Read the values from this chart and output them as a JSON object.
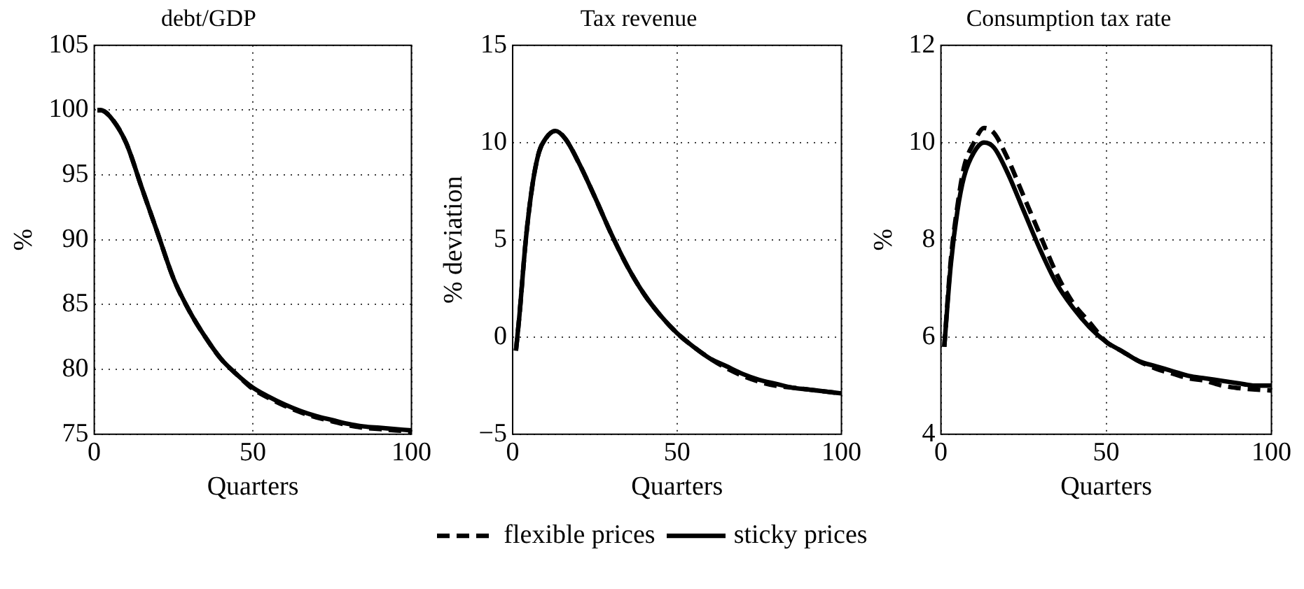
{
  "chart_data": [
    {
      "type": "line",
      "title": "debt/GDP",
      "xlabel": "Quarters",
      "ylabel": "%",
      "xlim": [
        0,
        100
      ],
      "xticks": [
        0,
        50,
        100
      ],
      "ylim": [
        75,
        105
      ],
      "yticks": [
        75,
        80,
        85,
        90,
        95,
        100,
        105
      ],
      "grid": true,
      "legend": "bottom",
      "marker": "none",
      "x": [
        1,
        2,
        5,
        10,
        15,
        20,
        25,
        30,
        35,
        40,
        45,
        50,
        55,
        60,
        65,
        70,
        75,
        80,
        85,
        90,
        95,
        100
      ],
      "series": [
        {
          "name": "flexible prices",
          "color": "#000000",
          "line_style": "dashed",
          "values": [
            100,
            100,
            99.5,
            97.5,
            94,
            90.5,
            87,
            84.5,
            82.5,
            80.8,
            79.6,
            78.5,
            77.8,
            77.2,
            76.7,
            76.3,
            76,
            75.7,
            75.5,
            75.4,
            75.3,
            75.2
          ]
        },
        {
          "name": "sticky prices",
          "color": "#000000",
          "line_style": "solid",
          "values": [
            100,
            100,
            99.5,
            97.5,
            94,
            90.5,
            87,
            84.5,
            82.5,
            80.8,
            79.6,
            78.6,
            77.9,
            77.3,
            76.8,
            76.4,
            76.1,
            75.8,
            75.6,
            75.5,
            75.4,
            75.3
          ]
        }
      ]
    },
    {
      "type": "line",
      "title": "Tax revenue",
      "xlabel": "Quarters",
      "ylabel": "% deviation",
      "xlim": [
        0,
        100
      ],
      "xticks": [
        0,
        50,
        100
      ],
      "ylim": [
        -5,
        15
      ],
      "yticks": [
        -5,
        0,
        5,
        10,
        15
      ],
      "grid": true,
      "marker": "none",
      "x": [
        1,
        2,
        4,
        6,
        8,
        10,
        13,
        16,
        20,
        25,
        30,
        35,
        40,
        45,
        50,
        55,
        60,
        65,
        70,
        75,
        80,
        85,
        90,
        95,
        100
      ],
      "series": [
        {
          "color": "#000000",
          "line_style": "dashed",
          "values": [
            -0.7,
            1,
            5,
            7.8,
            9.5,
            10.2,
            10.6,
            10.2,
            9,
            7.2,
            5.3,
            3.6,
            2.2,
            1.1,
            0.2,
            -0.5,
            -1.1,
            -1.6,
            -2,
            -2.3,
            -2.5,
            -2.6,
            -2.7,
            -2.8,
            -2.9
          ]
        },
        {
          "color": "#000000",
          "line_style": "solid",
          "values": [
            -0.7,
            1,
            5,
            7.8,
            9.5,
            10.2,
            10.6,
            10.2,
            9,
            7.2,
            5.3,
            3.6,
            2.2,
            1.1,
            0.2,
            -0.5,
            -1.1,
            -1.5,
            -1.9,
            -2.2,
            -2.4,
            -2.6,
            -2.7,
            -2.8,
            -2.9
          ]
        }
      ]
    },
    {
      "type": "line",
      "title": "Consumption tax rate",
      "xlabel": "Quarters",
      "ylabel": "%",
      "xlim": [
        0,
        100
      ],
      "xticks": [
        0,
        50,
        100
      ],
      "ylim": [
        4,
        12
      ],
      "yticks": [
        4,
        6,
        8,
        10,
        12
      ],
      "grid": true,
      "marker": "none",
      "x": [
        1,
        3,
        5,
        7,
        10,
        13,
        16,
        20,
        25,
        30,
        35,
        40,
        45,
        50,
        55,
        60,
        65,
        70,
        75,
        80,
        85,
        90,
        95,
        100
      ],
      "series": [
        {
          "color": "#000000",
          "line_style": "dashed",
          "values": [
            5.8,
            7.6,
            8.7,
            9.5,
            10,
            10.3,
            10.2,
            9.7,
            8.9,
            8.1,
            7.3,
            6.7,
            6.3,
            5.9,
            5.7,
            5.5,
            5.35,
            5.25,
            5.15,
            5.1,
            5,
            4.95,
            4.92,
            4.9
          ]
        },
        {
          "color": "#000000",
          "line_style": "solid",
          "values": [
            5.8,
            7.5,
            8.6,
            9.3,
            9.8,
            10,
            9.9,
            9.4,
            8.6,
            7.8,
            7.1,
            6.6,
            6.2,
            5.9,
            5.7,
            5.5,
            5.4,
            5.3,
            5.2,
            5.15,
            5.1,
            5.05,
            5,
            5
          ]
        }
      ]
    }
  ]
}
